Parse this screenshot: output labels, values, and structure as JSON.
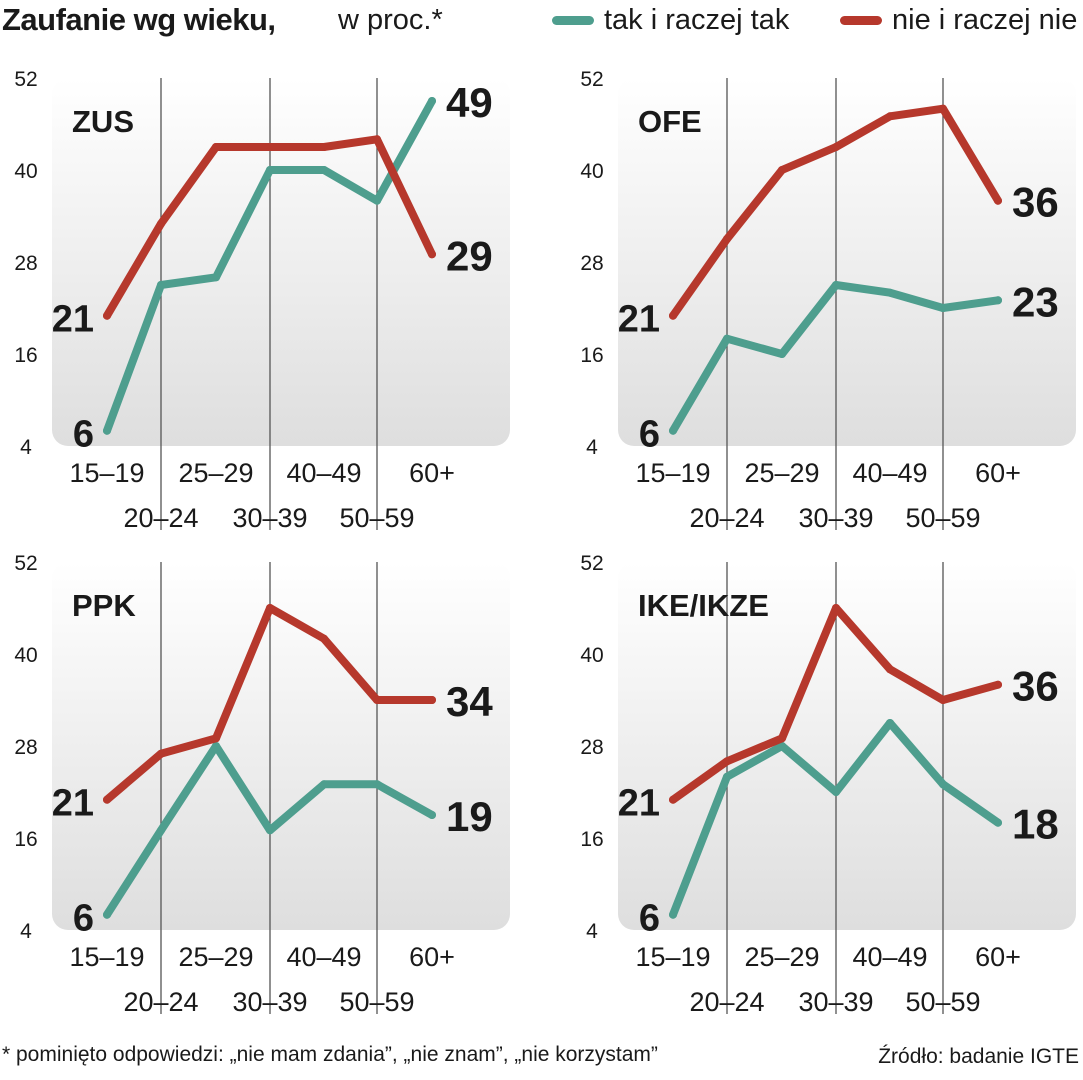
{
  "header": {
    "title_bold": "Zaufanie wg wieku,",
    "title_normal": "w proc.*",
    "legend": [
      {
        "label": "tak i raczej tak",
        "color": "#4e9e8e"
      },
      {
        "label": "nie i raczej nie",
        "color": "#b6382c"
      }
    ]
  },
  "footer": {
    "note": "* pominięto odpowiedzi: „nie mam zdania”, „nie znam”, „nie korzystam”",
    "source": "Źródło: badanie IGTE"
  },
  "colors": {
    "yes": "#4e9e8e",
    "no": "#b6382c",
    "panel_top": "#ffffff",
    "panel_bottom": "#dedede",
    "grid": "#555555"
  },
  "chart_data": [
    {
      "type": "line",
      "title": "ZUS",
      "categories": [
        "15–19",
        "20–24",
        "25–29",
        "30–39",
        "40–49",
        "50–59",
        "60+"
      ],
      "ylim": [
        4,
        52
      ],
      "yticks": [
        "52",
        "40",
        "28",
        "16",
        "4"
      ],
      "series": [
        {
          "name": "tak i raczej tak",
          "values": [
            6,
            25,
            26,
            40,
            40,
            36,
            49
          ],
          "end_label": "49",
          "start_label": "6"
        },
        {
          "name": "nie i raczej nie",
          "values": [
            21,
            33,
            43,
            43,
            43,
            44,
            29
          ],
          "end_label": "29",
          "start_label": "21"
        }
      ]
    },
    {
      "type": "line",
      "title": "OFE",
      "categories": [
        "15–19",
        "20–24",
        "25–29",
        "30–39",
        "40–49",
        "50–59",
        "60+"
      ],
      "ylim": [
        4,
        52
      ],
      "yticks": [
        "52",
        "40",
        "28",
        "16",
        "4"
      ],
      "series": [
        {
          "name": "tak i raczej tak",
          "values": [
            6,
            18,
            16,
            25,
            24,
            22,
            23
          ],
          "end_label": "23",
          "start_label": "6"
        },
        {
          "name": "nie i raczej nie",
          "values": [
            21,
            31,
            40,
            43,
            47,
            48,
            36
          ],
          "end_label": "36",
          "start_label": "21"
        }
      ]
    },
    {
      "type": "line",
      "title": "PPK",
      "categories": [
        "15–19",
        "20–24",
        "25–29",
        "30–39",
        "40–49",
        "50–59",
        "60+"
      ],
      "ylim": [
        4,
        52
      ],
      "yticks": [
        "52",
        "40",
        "28",
        "16",
        "4"
      ],
      "series": [
        {
          "name": "tak i raczej tak",
          "values": [
            6,
            17,
            28,
            17,
            23,
            23,
            19
          ],
          "end_label": "19",
          "start_label": "6"
        },
        {
          "name": "nie i raczej nie",
          "values": [
            21,
            27,
            29,
            46,
            42,
            34,
            34
          ],
          "end_label": "34",
          "start_label": "21"
        }
      ]
    },
    {
      "type": "line",
      "title": "IKE/IKZE",
      "categories": [
        "15–19",
        "20–24",
        "25–29",
        "30–39",
        "40–49",
        "50–59",
        "60+"
      ],
      "ylim": [
        4,
        52
      ],
      "yticks": [
        "52",
        "40",
        "28",
        "16",
        "4"
      ],
      "series": [
        {
          "name": "tak i raczej tak",
          "values": [
            6,
            24,
            28,
            22,
            31,
            23,
            18
          ],
          "end_label": "18",
          "start_label": "6"
        },
        {
          "name": "nie i raczej nie",
          "values": [
            21,
            26,
            29,
            46,
            38,
            34,
            36
          ],
          "end_label": "36",
          "start_label": "21"
        }
      ]
    }
  ]
}
